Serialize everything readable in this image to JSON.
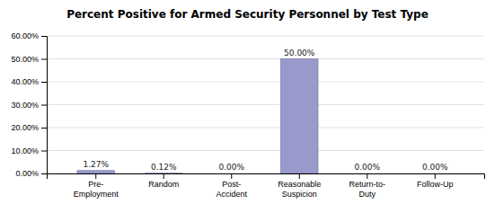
{
  "chart_data": {
    "type": "bar",
    "title": "Percent Positive for Armed Security Personnel by Test Type",
    "categories": [
      "Pre-\nEmployment",
      "Random",
      "Post-\nAccident",
      "Reasonable\nSuspicion",
      "Return-to-\nDuty",
      "Follow-Up"
    ],
    "values": [
      1.27,
      0.12,
      0.0,
      50.0,
      0.0,
      0.0
    ],
    "value_labels": [
      "1.27%",
      "0.12%",
      "0.00%",
      "50.00%",
      "0.00%",
      "0.00%"
    ],
    "data_labels": true,
    "color": "#9999cc",
    "ylim": [
      0,
      60
    ],
    "yticks": [
      {
        "value": 0,
        "label": "0.00%"
      },
      {
        "value": 10,
        "label": "10.00%"
      },
      {
        "value": 20,
        "label": "20.00%"
      },
      {
        "value": 30,
        "label": "30.00%"
      },
      {
        "value": 40,
        "label": "40.00%"
      },
      {
        "value": 50,
        "label": "50.00%"
      },
      {
        "value": 60,
        "label": "60.00%"
      }
    ],
    "grid": true
  }
}
